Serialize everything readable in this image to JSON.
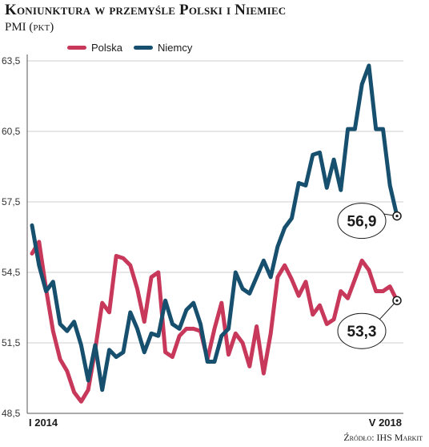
{
  "chart_data": {
    "type": "line",
    "title": "Koniunktura w przemyśle Polski i Niemiec",
    "subtitle": "PMI (pkt)",
    "source": "Źródło: IHS Markit",
    "ylim": [
      48.5,
      63.5
    ],
    "yticks": [
      "63,5",
      "60,5",
      "57,5",
      "54,5",
      "51,5",
      "48,5"
    ],
    "ytick_values": [
      63.5,
      60.5,
      57.5,
      54.5,
      51.5,
      48.5
    ],
    "xtick_labels": [
      "I 2014",
      "V 2018"
    ],
    "grid": "horizontal",
    "legend_position": "top-left",
    "colors": {
      "polska": "#c7385a",
      "niemcy": "#17506e",
      "grid": "#cfcfcf",
      "axis": "#555555"
    },
    "series": [
      {
        "name": "Polska",
        "color": "#c7385a",
        "values": [
          55.3,
          55.8,
          53.8,
          52.0,
          50.8,
          50.3,
          49.4,
          49.0,
          49.5,
          51.2,
          53.2,
          52.8,
          55.2,
          55.1,
          54.8,
          53.8,
          52.4,
          54.3,
          54.5,
          51.1,
          50.9,
          51.8,
          52.1,
          52.1,
          52.0,
          50.8,
          52.1,
          53.2,
          51.0,
          51.9,
          51.5,
          50.5,
          52.2,
          50.2,
          51.9,
          54.3,
          54.8,
          54.2,
          53.5,
          54.1,
          52.7,
          53.1,
          52.3,
          52.5,
          53.7,
          53.4,
          54.2,
          55.0,
          54.6,
          53.7,
          53.7,
          53.9,
          53.3
        ]
      },
      {
        "name": "Niemcy",
        "color": "#17506e",
        "values": [
          56.5,
          54.8,
          53.7,
          54.1,
          52.3,
          52.0,
          52.4,
          51.4,
          49.9,
          51.4,
          49.5,
          51.2,
          50.9,
          51.1,
          52.8,
          52.1,
          51.1,
          51.9,
          51.8,
          53.3,
          52.3,
          52.1,
          52.9,
          53.2,
          52.3,
          50.7,
          50.7,
          51.8,
          52.1,
          54.5,
          53.8,
          53.6,
          54.3,
          55.0,
          54.3,
          55.6,
          56.4,
          56.8,
          58.3,
          58.2,
          59.5,
          59.6,
          58.1,
          59.3,
          58.0,
          60.6,
          60.6,
          62.5,
          63.3,
          60.6,
          60.6,
          58.2,
          56.9
        ]
      }
    ],
    "end_labels": [
      {
        "series": "Niemcy",
        "text": "56,9"
      },
      {
        "series": "Polska",
        "text": "53,3"
      }
    ]
  }
}
